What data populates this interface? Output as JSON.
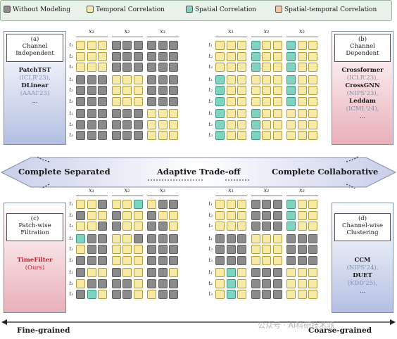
{
  "legend": [
    {
      "label": "Without Modeling",
      "color": "#8b8b8b"
    },
    {
      "label": "Temporal Correlation",
      "color": "#f7e9a6"
    },
    {
      "label": "Spatial Correlation",
      "color": "#7fd4c1"
    },
    {
      "label": "Spatial-temporal Correlation",
      "color": "#f6c6a2"
    }
  ],
  "panels": {
    "a": {
      "tag": "(a)",
      "title1": "Channel",
      "title2": "Independent",
      "body": [
        "PatchTST",
        "(ICLR'23),",
        "DLinear",
        "(AAAI'23)",
        "..."
      ]
    },
    "b": {
      "tag": "(b)",
      "title1": "Channel",
      "title2": "Dependent",
      "body": [
        "Crossformer",
        "(ICLR'23),",
        "CrossGNN",
        "(NIPS'23),",
        "Leddam",
        "(ICML'24),",
        "..."
      ]
    },
    "c": {
      "tag": "(c)",
      "title1": "Patch-wise",
      "title2": "Filtration",
      "body": [
        "TimeFilter",
        "(Ours)"
      ]
    },
    "d": {
      "tag": "(d)",
      "title1": "Channel-wise",
      "title2": "Clustering",
      "body": [
        "CCM",
        "(NIPS'24),",
        "DUET",
        "(KDD'25),",
        "..."
      ]
    }
  },
  "column_headers": [
    "x₁",
    "x₂",
    "x₃"
  ],
  "row_labels": [
    "t₁",
    "t₂",
    "t₃",
    "t₁",
    "t₂",
    "t₃",
    "t₁",
    "t₂",
    "t₃"
  ],
  "band": {
    "left": "Complete Separated",
    "middle": "Adaptive Trade-off",
    "right": "Complete Collaborative"
  },
  "axis": {
    "left": "Fine-grained",
    "right": "Coarse-grained"
  },
  "watermark": "公众号 · AI科研技术派",
  "grids": {
    "a": [
      "TTTNNNNNN",
      "TTTNNNNNN",
      "TTTNNNNNN",
      "NNNTTTNNN",
      "NNNTTTNNN",
      "NNNTTTNNN",
      "NNNNNNTTT",
      "NNNNNNTTT",
      "NNNNNNTTT"
    ],
    "b": [
      "TTTSTTSTT",
      "TTTSTTSTT",
      "TTTSTTSTT",
      "STTTTTSTT",
      "STTTTTSTT",
      "STTTTTSTT",
      "STTSTTTTT",
      "STTSTTTTT",
      "STTSTTTTT"
    ],
    "c": [
      "TTNTTSTNN",
      "NTTNTTNTT",
      "TTNNTTNNT",
      "SNNTTNNNN",
      "TNNTTTNNN",
      "NNNTTTNNN",
      "NTTNTTNNT",
      "TNNNNTNNN",
      "NSTNNTTNN"
    ],
    "d": [
      "TTTNNNSTT",
      "TTTNNNSTT",
      "TTTNNNSTT",
      "NNNTTTNNN",
      "NNNTTTNNN",
      "NNNTTTNNN",
      "TSTNNNTTT",
      "TSTNNNTTT",
      "TSTNNNTTT"
    ]
  }
}
